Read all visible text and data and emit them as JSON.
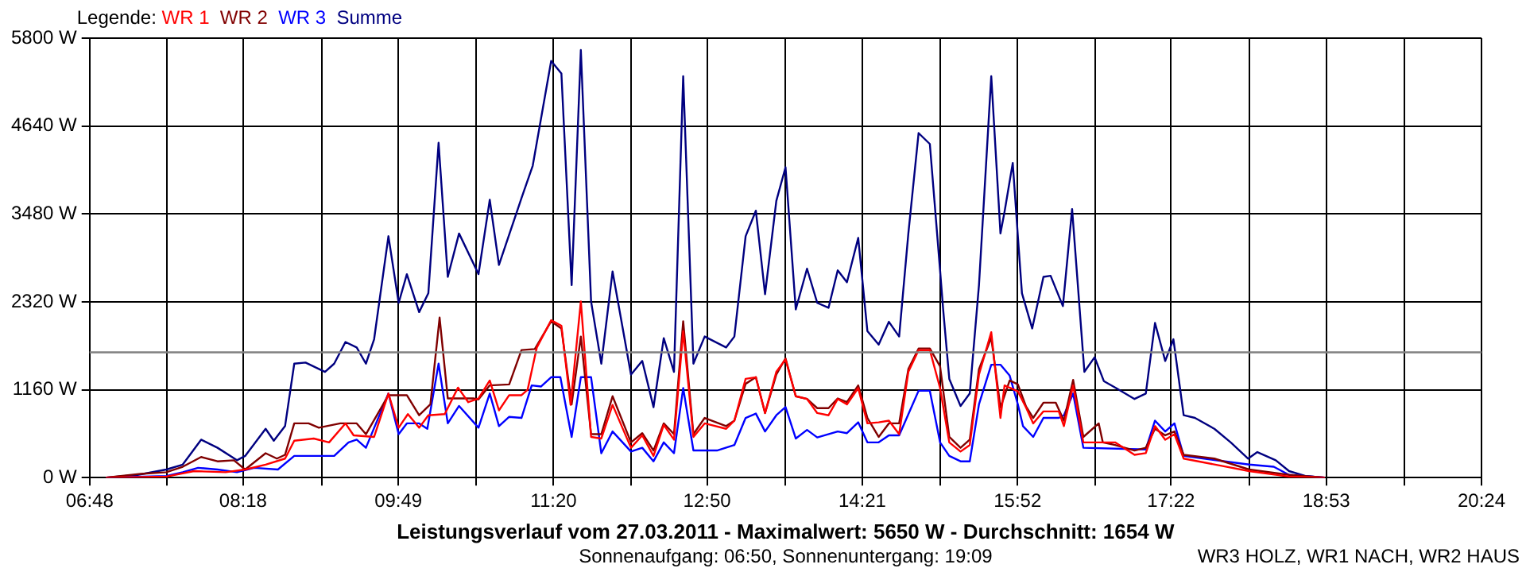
{
  "chart_data": {
    "type": "line",
    "title": "Leistungsverlauf vom 27.03.2011 - Maximalwert: 5650 W - Durchschnitt: 1654 W",
    "subtitle": "Sonnenaufgang: 06:50, Sonnenuntergang: 19:09",
    "annotations": [
      "WR3 HOLZ, WR1 NACH, WR2 HAUS"
    ],
    "legend_title": "Legende:",
    "legend": "top left",
    "grid": true,
    "marker": "none",
    "line_style": "solid",
    "xlim": [
      6.8,
      20.4
    ],
    "xticks": [
      {
        "value": 6.8,
        "label": "06:48"
      },
      {
        "value": 7.556,
        "label": null
      },
      {
        "value": 8.3,
        "label": "08:18"
      },
      {
        "value": 9.067,
        "label": null
      },
      {
        "value": 9.8167,
        "label": "09:49"
      },
      {
        "value": 10.578,
        "label": null
      },
      {
        "value": 11.3333,
        "label": "11:20"
      },
      {
        "value": 12.089,
        "label": null
      },
      {
        "value": 12.8333,
        "label": "12:50"
      },
      {
        "value": 13.6,
        "label": null
      },
      {
        "value": 14.35,
        "label": "14:21"
      },
      {
        "value": 15.111,
        "label": null
      },
      {
        "value": 15.8667,
        "label": "15:52"
      },
      {
        "value": 16.622,
        "label": null
      },
      {
        "value": 17.3667,
        "label": "17:22"
      },
      {
        "value": 18.133,
        "label": null
      },
      {
        "value": 18.8833,
        "label": "18:53"
      },
      {
        "value": 19.644,
        "label": null
      },
      {
        "value": 20.4,
        "label": "20:24"
      }
    ],
    "ylim": [
      0,
      5800
    ],
    "yticks": [
      {
        "value": 0,
        "label": "0 W"
      },
      {
        "value": 1160,
        "label": "1160 W"
      },
      {
        "value": 2320,
        "label": "2320 W"
      },
      {
        "value": 3480,
        "label": "3480 W"
      },
      {
        "value": 4640,
        "label": "4640 W"
      },
      {
        "value": 5800,
        "label": "5800 W"
      }
    ],
    "ref_lines": [
      {
        "axis": "y",
        "value": 1654,
        "color": "#808080"
      }
    ],
    "series": [
      {
        "name": "WR 1",
        "color": "#ff0000",
        "x": [
          6.96,
          7.55,
          7.82,
          8.13,
          8.32,
          8.52,
          8.71,
          8.8,
          8.99,
          9.14,
          9.3,
          9.38,
          9.58,
          9.72,
          9.82,
          9.91,
          10.02,
          10.11,
          10.27,
          10.4,
          10.5,
          10.6,
          10.71,
          10.8,
          10.9,
          11.02,
          11.08,
          11.17,
          11.31,
          11.41,
          11.5,
          11.6,
          11.7,
          11.8,
          11.91,
          12.09,
          12.2,
          12.31,
          12.41,
          12.51,
          12.6,
          12.7,
          12.81,
          13.02,
          13.1,
          13.21,
          13.31,
          13.4,
          13.51,
          13.6,
          13.7,
          13.81,
          13.91,
          14.02,
          14.11,
          14.2,
          14.31,
          14.4,
          14.51,
          14.61,
          14.71,
          14.8,
          14.9,
          15.01,
          15.11,
          15.2,
          15.31,
          15.4,
          15.49,
          15.61,
          15.7,
          15.74,
          15.87,
          15.95,
          16.02,
          16.12,
          16.27,
          16.32,
          16.41,
          16.51,
          16.82,
          17.01,
          17.12,
          17.21,
          17.31,
          17.4,
          17.49,
          18.13,
          18.52,
          18.87
        ],
        "values": [
          0,
          14,
          86,
          72,
          107,
          172,
          251,
          487,
          516,
          465,
          716,
          558,
          537,
          1110,
          659,
          838,
          659,
          823,
          838,
          1188,
          996,
          1045,
          1282,
          888,
          1088,
          1088,
          1160,
          1718,
          2077,
          2005,
          960,
          2326,
          537,
          516,
          960,
          394,
          558,
          286,
          695,
          501,
          1933,
          537,
          716,
          644,
          752,
          1303,
          1325,
          852,
          1396,
          1561,
          1074,
          1038,
          852,
          823,
          1038,
          967,
          1181,
          716,
          730,
          752,
          573,
          1396,
          1683,
          1683,
          1181,
          465,
          344,
          430,
          1360,
          1919,
          788,
          1217,
          1138,
          924,
          716,
          874,
          874,
          680,
          1217,
          465,
          465,
          301,
          323,
          680,
          501,
          573,
          251,
          86,
          14,
          0
        ]
      },
      {
        "name": "WR 2",
        "color": "#800000",
        "x": [
          6.96,
          7.3,
          7.55,
          7.71,
          7.89,
          8.05,
          8.21,
          8.32,
          8.52,
          8.63,
          8.71,
          8.8,
          8.94,
          9.04,
          9.25,
          9.41,
          9.5,
          9.72,
          9.9,
          10.02,
          10.13,
          10.22,
          10.3,
          10.55,
          10.6,
          10.71,
          10.9,
          11.02,
          11.15,
          11.31,
          11.41,
          11.51,
          11.6,
          11.7,
          11.8,
          11.91,
          12.09,
          12.2,
          12.31,
          12.41,
          12.51,
          12.6,
          12.7,
          12.81,
          13.02,
          13.1,
          13.21,
          13.31,
          13.4,
          13.51,
          13.6,
          13.7,
          13.81,
          13.91,
          14.02,
          14.11,
          14.2,
          14.31,
          14.4,
          14.51,
          14.61,
          14.71,
          14.8,
          14.9,
          15.01,
          15.11,
          15.2,
          15.31,
          15.4,
          15.49,
          15.61,
          15.7,
          15.79,
          15.87,
          15.95,
          16.02,
          16.12,
          16.24,
          16.32,
          16.41,
          16.51,
          16.66,
          16.7,
          16.82,
          17.01,
          17.12,
          17.21,
          17.31,
          17.4,
          17.49,
          17.79,
          18.13,
          18.52,
          18.87
        ],
        "values": [
          0,
          50,
          72,
          143,
          272,
          215,
          229,
          107,
          322,
          251,
          301,
          716,
          716,
          659,
          716,
          716,
          573,
          1088,
          1088,
          823,
          967,
          2112,
          1045,
          1045,
          1031,
          1217,
          1230,
          1683,
          1697,
          2063,
          1969,
          967,
          1862,
          573,
          573,
          1074,
          465,
          587,
          358,
          716,
          573,
          2063,
          573,
          788,
          680,
          752,
          1238,
          1325,
          852,
          1360,
          1575,
          1074,
          1038,
          917,
          917,
          1045,
          996,
          1217,
          788,
          537,
          716,
          716,
          1432,
          1704,
          1704,
          1468,
          537,
          394,
          501,
          1432,
          1847,
          924,
          1282,
          1230,
          938,
          788,
          989,
          989,
          752,
          1289,
          537,
          716,
          465,
          430,
          358,
          394,
          644,
          558,
          609,
          301,
          251,
          107,
          36,
          0
        ]
      },
      {
        "name": "WR 3",
        "color": "#0000ff",
        "x": [
          6.96,
          7.55,
          7.71,
          7.86,
          8.05,
          8.24,
          8.41,
          8.64,
          8.8,
          9.19,
          9.33,
          9.41,
          9.5,
          9.72,
          9.82,
          9.9,
          10.02,
          10.1,
          10.21,
          10.3,
          10.41,
          10.6,
          10.71,
          10.8,
          10.9,
          11.02,
          11.12,
          11.21,
          11.31,
          11.4,
          11.51,
          11.6,
          11.7,
          11.8,
          11.91,
          12.09,
          12.2,
          12.31,
          12.41,
          12.51,
          12.6,
          12.7,
          12.93,
          13.1,
          13.21,
          13.31,
          13.4,
          13.51,
          13.6,
          13.7,
          13.81,
          13.91,
          14.11,
          14.2,
          14.31,
          14.4,
          14.51,
          14.61,
          14.71,
          14.9,
          15.01,
          15.11,
          15.2,
          15.31,
          15.4,
          15.49,
          15.61,
          15.7,
          15.79,
          15.87,
          15.92,
          16.02,
          16.12,
          16.27,
          16.32,
          16.41,
          16.51,
          17.12,
          17.21,
          17.31,
          17.4,
          17.49,
          18.13,
          18.37,
          18.52,
          18.87
        ],
        "values": [
          0,
          21,
          72,
          129,
          107,
          72,
          129,
          107,
          286,
          286,
          465,
          501,
          394,
          1110,
          573,
          716,
          716,
          644,
          1504,
          716,
          946,
          659,
          1110,
          680,
          802,
          788,
          1217,
          1202,
          1325,
          1325,
          537,
          1325,
          1325,
          322,
          609,
          344,
          394,
          215,
          465,
          322,
          1181,
          358,
          358,
          430,
          788,
          845,
          609,
          823,
          931,
          516,
          630,
          530,
          609,
          587,
          730,
          465,
          465,
          558,
          558,
          1146,
          1146,
          465,
          286,
          215,
          215,
          967,
          1490,
          1490,
          1346,
          967,
          680,
          537,
          788,
          788,
          823,
          1110,
          394,
          372,
          752,
          609,
          716,
          286,
          172,
          143,
          36,
          0
        ]
      },
      {
        "name": "Summe",
        "color": "#000080",
        "x": [
          6.96,
          7.27,
          7.55,
          7.71,
          7.89,
          8.05,
          8.24,
          8.32,
          8.52,
          8.6,
          8.71,
          8.8,
          8.91,
          9.1,
          9.19,
          9.3,
          9.41,
          9.5,
          9.58,
          9.72,
          9.82,
          9.9,
          10.02,
          10.11,
          10.21,
          10.3,
          10.41,
          10.6,
          10.71,
          10.8,
          11.02,
          11.13,
          11.31,
          11.41,
          11.51,
          11.6,
          11.7,
          11.8,
          11.91,
          12.09,
          12.2,
          12.31,
          12.41,
          12.51,
          12.6,
          12.7,
          12.81,
          13.02,
          13.1,
          13.21,
          13.31,
          13.4,
          13.51,
          13.6,
          13.7,
          13.81,
          13.91,
          14.02,
          14.11,
          14.2,
          14.31,
          14.4,
          14.51,
          14.61,
          14.71,
          14.8,
          14.9,
          15.01,
          15.11,
          15.14,
          15.2,
          15.31,
          15.4,
          15.49,
          15.61,
          15.7,
          15.74,
          15.82,
          15.87,
          15.91,
          16.01,
          16.12,
          16.19,
          16.31,
          16.4,
          16.52,
          16.62,
          16.71,
          16.83,
          17.01,
          17.12,
          17.21,
          17.31,
          17.39,
          17.49,
          17.6,
          17.79,
          17.95,
          18.12,
          18.21,
          18.39,
          18.52,
          18.68,
          18.87
        ],
        "values": [
          0,
          36,
          107,
          172,
          501,
          394,
          229,
          286,
          644,
          487,
          680,
          1504,
          1518,
          1396,
          1504,
          1790,
          1718,
          1504,
          1826,
          3186,
          2306,
          2685,
          2184,
          2434,
          4418,
          2649,
          3222,
          2685,
          3666,
          2807,
          3688,
          4117,
          5499,
          5334,
          2541,
          5643,
          2326,
          1504,
          2721,
          1360,
          1540,
          930,
          1840,
          1396,
          5298,
          1504,
          1862,
          1718,
          1862,
          3186,
          3523,
          2420,
          3652,
          4096,
          2220,
          2757,
          2306,
          2241,
          2735,
          2578,
          3164,
          1933,
          1755,
          2056,
          1862,
          3222,
          4547,
          4403,
          2735,
          2220,
          1303,
          945,
          1110,
          2541,
          5298,
          3222,
          3509,
          4153,
          3186,
          2434,
          1969,
          2649,
          2664,
          2263,
          3544,
          1396,
          1589,
          1274,
          1181,
          1038,
          1110,
          2041,
          1540,
          1826,
          823,
          788,
          644,
          465,
          251,
          337,
          229,
          86,
          21,
          0
        ]
      }
    ]
  }
}
